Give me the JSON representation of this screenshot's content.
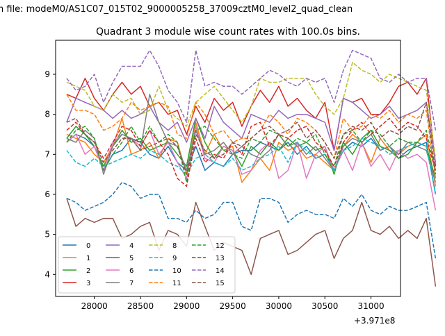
{
  "suptitle": "n file: modeM0/AS1C07_015T02_9000005258_37009cztM0_level2_quad_clean",
  "chart_data": {
    "type": "line",
    "title": "Quadrant 3 module wise count rates with 100.0s bins.",
    "xlabel": "",
    "ylabel": "",
    "offset_text": "+3.971e8",
    "xlim": [
      27580,
      31320
    ],
    "ylim": [
      3.45,
      9.85
    ],
    "xticks": [
      28000,
      28500,
      29000,
      29500,
      30000,
      30500,
      31000
    ],
    "xtick_labels": [
      "28000",
      "28500",
      "29000",
      "29500",
      "30000",
      "30500",
      "31000"
    ],
    "yticks": [
      4,
      5,
      6,
      7,
      8,
      9
    ],
    "ytick_labels": [
      "4",
      "5",
      "6",
      "7",
      "8",
      "9"
    ],
    "legend": {
      "position": "lower-left",
      "columns": 4
    },
    "x_start": 27700,
    "x_step": 100,
    "series": [
      {
        "name": "0",
        "color": "#1f77b4",
        "dashed": false,
        "values": [
          7.3,
          7.5,
          7.4,
          7.2,
          6.6,
          7.0,
          7.1,
          7.4,
          7.3,
          7.0,
          6.9,
          7.2,
          6.8,
          6.6,
          7.2,
          6.6,
          6.8,
          6.7,
          7.0,
          7.1,
          7.1,
          7.3,
          7.2,
          7.1,
          7.3,
          7.0,
          7.2,
          6.9,
          7.0,
          6.6,
          7.1,
          7.3,
          7.2,
          7.4,
          7.1,
          7.2,
          6.9,
          7.1,
          7.2,
          7.3,
          6.0
        ]
      },
      {
        "name": "1",
        "color": "#ff7f0e",
        "dashed": false,
        "values": [
          7.5,
          7.4,
          7.3,
          7.0,
          6.8,
          7.2,
          7.9,
          7.0,
          7.1,
          7.3,
          6.9,
          7.4,
          7.3,
          6.5,
          7.8,
          7.0,
          7.5,
          7.1,
          7.2,
          6.3,
          6.6,
          6.9,
          6.6,
          7.3,
          7.1,
          7.2,
          6.9,
          7.0,
          6.8,
          6.6,
          7.2,
          7.5,
          7.3,
          6.8,
          7.4,
          7.1,
          7.0,
          7.2,
          7.3,
          7.5,
          6.2
        ]
      },
      {
        "name": "2",
        "color": "#2ca02c",
        "dashed": false,
        "values": [
          7.4,
          7.7,
          7.5,
          7.2,
          6.7,
          7.2,
          7.6,
          7.3,
          7.4,
          7.1,
          7.2,
          7.3,
          7.0,
          6.7,
          7.9,
          7.3,
          6.9,
          7.2,
          7.1,
          6.7,
          7.2,
          7.0,
          7.3,
          7.1,
          7.4,
          7.2,
          7.3,
          7.1,
          7.2,
          6.5,
          7.3,
          7.0,
          7.4,
          7.6,
          7.2,
          7.1,
          6.9,
          7.0,
          7.3,
          7.2,
          6.4
        ]
      },
      {
        "name": "3",
        "color": "#d62728",
        "dashed": false,
        "values": [
          8.5,
          8.4,
          8.9,
          8.4,
          8.1,
          8.5,
          8.8,
          8.5,
          8.7,
          8.2,
          8.3,
          8.0,
          8.1,
          7.5,
          8.2,
          7.8,
          8.4,
          8.1,
          8.3,
          7.7,
          8.2,
          8.6,
          8.3,
          8.7,
          8.2,
          8.4,
          8.1,
          7.9,
          8.3,
          7.1,
          8.4,
          8.3,
          8.4,
          8.0,
          8.0,
          8.3,
          8.7,
          8.8,
          8.5,
          8.9,
          6.7
        ]
      },
      {
        "name": "4",
        "color": "#9467bd",
        "dashed": false,
        "values": [
          7.8,
          8.4,
          8.3,
          8.2,
          8.1,
          7.9,
          8.1,
          7.9,
          8.0,
          8.2,
          7.8,
          7.6,
          7.8,
          7.3,
          7.9,
          7.4,
          8.2,
          7.8,
          7.6,
          7.4,
          8.0,
          7.9,
          7.8,
          8.1,
          7.9,
          8.0,
          8.0,
          7.9,
          7.8,
          7.1,
          8.4,
          8.3,
          8.1,
          7.9,
          8.0,
          8.2,
          7.9,
          8.0,
          8.1,
          8.3,
          6.8
        ]
      },
      {
        "name": "5",
        "color": "#8c564b",
        "dashed": false,
        "values": [
          5.9,
          5.2,
          5.4,
          5.3,
          5.4,
          5.4,
          4.9,
          5.0,
          5.2,
          5.3,
          4.6,
          5.1,
          5.0,
          4.7,
          5.8,
          5.2,
          4.6,
          4.8,
          4.7,
          4.6,
          4.0,
          4.9,
          5.0,
          5.1,
          4.5,
          4.6,
          4.8,
          5.0,
          5.1,
          4.4,
          4.9,
          5.1,
          5.8,
          5.1,
          5.0,
          5.2,
          4.9,
          5.1,
          4.9,
          5.4,
          3.7
        ]
      },
      {
        "name": "6",
        "color": "#e377c2",
        "dashed": false,
        "values": [
          7.3,
          7.5,
          7.0,
          7.2,
          6.6,
          7.3,
          7.5,
          7.4,
          7.2,
          7.6,
          7.0,
          7.3,
          6.8,
          6.4,
          7.7,
          6.9,
          6.8,
          7.2,
          7.1,
          6.5,
          6.6,
          7.1,
          7.3,
          6.4,
          6.6,
          7.3,
          6.4,
          7.0,
          7.2,
          6.6,
          7.1,
          6.6,
          7.3,
          6.7,
          7.0,
          6.6,
          7.1,
          6.9,
          7.0,
          6.8,
          5.6
        ]
      },
      {
        "name": "7",
        "color": "#7f7f7f",
        "dashed": false,
        "values": [
          7.4,
          7.3,
          7.6,
          7.4,
          6.5,
          7.2,
          7.5,
          7.4,
          7.1,
          8.5,
          7.8,
          7.3,
          7.2,
          6.6,
          7.6,
          7.0,
          7.1,
          7.3,
          7.0,
          7.2,
          7.0,
          6.9,
          7.1,
          7.5,
          7.2,
          7.3,
          7.0,
          7.2,
          6.9,
          6.6,
          7.2,
          7.4,
          7.3,
          7.5,
          7.1,
          7.2,
          7.0,
          7.3,
          7.2,
          7.1,
          6.3
        ]
      },
      {
        "name": "8",
        "color": "#bcbd22",
        "dashed": true,
        "values": [
          8.8,
          8.7,
          8.6,
          8.2,
          8.1,
          8.5,
          8.3,
          8.4,
          8.0,
          8.1,
          8.7,
          8.1,
          7.9,
          7.7,
          8.3,
          8.5,
          8.7,
          8.4,
          8.1,
          7.8,
          8.2,
          8.9,
          8.8,
          8.8,
          8.9,
          8.9,
          8.9,
          8.5,
          8.2,
          8.0,
          8.4,
          9.3,
          9.1,
          9.0,
          8.8,
          9.0,
          8.9,
          8.8,
          8.7,
          8.6,
          6.9
        ]
      },
      {
        "name": "9",
        "color": "#17becf",
        "dashed": true,
        "values": [
          7.1,
          6.8,
          6.7,
          6.9,
          6.7,
          6.8,
          6.9,
          7.0,
          6.9,
          7.1,
          7.0,
          6.8,
          6.7,
          6.5,
          6.9,
          7.0,
          6.8,
          6.7,
          6.9,
          6.6,
          6.7,
          6.9,
          7.0,
          7.2,
          6.8,
          7.3,
          7.1,
          6.9,
          7.0,
          6.6,
          7.1,
          7.2,
          7.4,
          7.3,
          7.2,
          7.0,
          7.1,
          7.2,
          7.3,
          7.2,
          6.0
        ]
      },
      {
        "name": "10",
        "color": "#1f77b4",
        "dashed": true,
        "values": [
          5.9,
          5.8,
          5.6,
          5.7,
          5.8,
          6.0,
          6.3,
          6.2,
          5.9,
          6.0,
          6.0,
          5.4,
          5.4,
          5.3,
          5.6,
          5.4,
          5.5,
          5.8,
          5.8,
          5.2,
          5.1,
          5.9,
          5.9,
          5.8,
          5.3,
          5.5,
          5.6,
          5.5,
          5.5,
          5.4,
          5.9,
          5.7,
          6.0,
          5.6,
          5.5,
          5.7,
          5.6,
          5.6,
          5.7,
          5.8,
          4.4
        ]
      },
      {
        "name": "11",
        "color": "#ff7f0e",
        "dashed": true,
        "values": [
          8.5,
          8.1,
          8.1,
          8.0,
          7.6,
          7.7,
          7.9,
          8.3,
          8.1,
          8.2,
          8.3,
          8.2,
          7.5,
          7.4,
          8.3,
          8.0,
          7.5,
          7.6,
          7.3,
          7.4,
          7.4,
          7.6,
          8.0,
          7.8,
          7.5,
          7.9,
          7.8,
          7.6,
          7.3,
          6.9,
          7.9,
          7.6,
          7.7,
          8.0,
          7.9,
          8.1,
          7.8,
          8.0,
          7.9,
          8.1,
          6.4
        ]
      },
      {
        "name": "12",
        "color": "#2ca02c",
        "dashed": true,
        "values": [
          7.3,
          7.6,
          7.7,
          7.4,
          6.6,
          7.0,
          7.3,
          7.7,
          7.3,
          7.7,
          7.3,
          7.5,
          7.3,
          6.3,
          7.6,
          7.7,
          7.4,
          7.1,
          7.0,
          6.9,
          7.4,
          7.3,
          7.6,
          7.5,
          7.2,
          7.4,
          7.3,
          7.5,
          7.0,
          6.7,
          7.5,
          7.6,
          7.3,
          7.6,
          7.5,
          7.2,
          7.4,
          7.3,
          7.3,
          7.6,
          6.6
        ]
      },
      {
        "name": "13",
        "color": "#d62728",
        "dashed": true,
        "values": [
          7.6,
          7.8,
          7.5,
          7.3,
          6.9,
          7.3,
          7.7,
          7.6,
          7.2,
          7.6,
          7.3,
          7.0,
          6.4,
          6.2,
          7.4,
          6.8,
          7.0,
          6.9,
          7.3,
          7.0,
          7.7,
          7.8,
          7.2,
          7.5,
          7.4,
          7.6,
          7.7,
          7.3,
          7.1,
          6.7,
          7.3,
          7.6,
          7.8,
          7.5,
          7.7,
          7.9,
          7.6,
          7.8,
          7.7,
          7.4,
          6.6
        ]
      },
      {
        "name": "14",
        "color": "#9467bd",
        "dashed": true,
        "values": [
          8.9,
          8.6,
          8.7,
          9.0,
          8.3,
          8.8,
          9.2,
          9.2,
          9.2,
          9.6,
          9.2,
          8.6,
          8.3,
          7.8,
          9.6,
          8.7,
          8.8,
          8.7,
          8.7,
          8.5,
          8.7,
          8.9,
          9.1,
          9.0,
          8.8,
          8.7,
          8.9,
          8.8,
          8.9,
          8.3,
          9.1,
          9.6,
          9.5,
          9.4,
          8.9,
          8.8,
          9.0,
          8.8,
          8.9,
          8.9,
          7.6
        ]
      },
      {
        "name": "15",
        "color": "#8c564b",
        "dashed": true,
        "values": [
          7.8,
          7.9,
          7.5,
          7.3,
          6.8,
          7.1,
          7.4,
          7.4,
          7.1,
          7.2,
          7.3,
          7.4,
          7.2,
          6.5,
          7.5,
          7.1,
          6.9,
          7.0,
          7.3,
          7.2,
          7.4,
          7.6,
          7.7,
          7.5,
          7.6,
          7.8,
          7.4,
          7.6,
          7.3,
          6.9,
          7.5,
          7.7,
          7.6,
          7.8,
          7.4,
          7.6,
          7.5,
          7.7,
          7.6,
          8.3,
          6.5
        ]
      }
    ]
  }
}
